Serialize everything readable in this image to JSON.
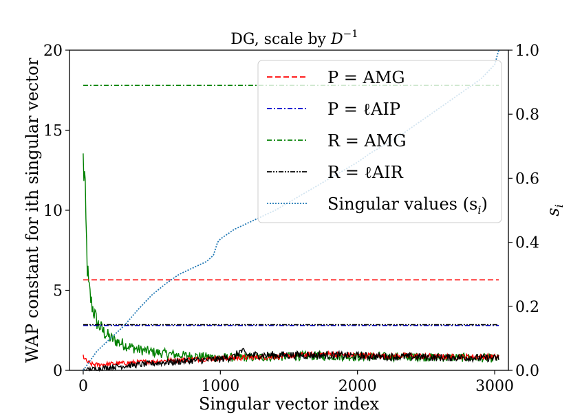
{
  "chart_data": {
    "type": "line",
    "title_text": "DG, scale by ",
    "title_math_base": "D",
    "title_math_sup": "−1",
    "xlabel": "Singular vector index",
    "ylabel_left": "WAP constant for ith singular vector",
    "ylabel_right": "s",
    "ylabel_right_sub": "i",
    "xlim": [
      -100,
      3100
    ],
    "ylim_left": [
      0,
      20
    ],
    "ylim_right": [
      0,
      1.0
    ],
    "x_ticks": [
      0,
      1000,
      2000,
      3000
    ],
    "x_tick_labels": [
      "0",
      "1000",
      "2000",
      "3000"
    ],
    "y_left_ticks": [
      0,
      5,
      10,
      15,
      20
    ],
    "y_left_tick_labels": [
      "0",
      "5",
      "10",
      "15",
      "20"
    ],
    "y_right_ticks": [
      0,
      0.2,
      0.4,
      0.6,
      0.8,
      1.0
    ],
    "y_right_tick_labels": [
      "0.0",
      "0.2",
      "0.4",
      "0.6",
      "0.8",
      "1.0"
    ],
    "legend_position": "upper-right",
    "series": [
      {
        "name": "P = AMG",
        "label": "P = AMG",
        "axis": "left",
        "color": "#ff0000",
        "style": "dashed",
        "constant": 5.65,
        "x_range": [
          0,
          3030
        ]
      },
      {
        "name": "P = ℓAIP",
        "label": "P = ℓAIP",
        "axis": "left",
        "color": "#0000cc",
        "style": "dashdot",
        "constant": 2.8,
        "x_range": [
          0,
          3030
        ]
      },
      {
        "name": "R = AMG",
        "label": "R = AMG",
        "axis": "left",
        "color": "#008000",
        "style": "dashdot",
        "constant": 17.8,
        "x_range": [
          0,
          3030
        ]
      },
      {
        "name": "R = ℓAIR",
        "label": "R = ℓAIR",
        "axis": "left",
        "color": "#000000",
        "style": "dashdotdot",
        "constant": 2.85,
        "x_range": [
          0,
          3030
        ]
      },
      {
        "name": "Singular values (s_i)",
        "label": "Singular values (s",
        "label_sub": "i",
        "label_end": ")",
        "axis": "right",
        "color": "#1f77b4",
        "style": "dotted",
        "x": [
          0,
          50,
          100,
          200,
          300,
          400,
          500,
          600,
          700,
          800,
          900,
          950,
          980,
          1000,
          1050,
          1100,
          1200,
          1300,
          1400,
          1500,
          1600,
          1700,
          1800,
          1900,
          2000,
          2100,
          2200,
          2300,
          2400,
          2500,
          2600,
          2700,
          2800,
          2900,
          3000,
          3030
        ],
        "values": [
          0.0,
          0.03,
          0.06,
          0.1,
          0.14,
          0.19,
          0.235,
          0.27,
          0.3,
          0.32,
          0.34,
          0.36,
          0.4,
          0.41,
          0.425,
          0.44,
          0.46,
          0.48,
          0.5,
          0.525,
          0.55,
          0.575,
          0.6,
          0.625,
          0.65,
          0.68,
          0.705,
          0.73,
          0.76,
          0.79,
          0.82,
          0.85,
          0.88,
          0.91,
          0.955,
          1.0
        ]
      },
      {
        "name": "R = AMG (per vector)",
        "axis": "left",
        "color": "#008000",
        "style": "solid",
        "noise": 0.35,
        "x": [
          0,
          10,
          20,
          30,
          40,
          60,
          80,
          100,
          150,
          200,
          300,
          400,
          500,
          600,
          700,
          800,
          900,
          1000,
          1200,
          1400,
          1600,
          1800,
          2000,
          2200,
          2400,
          2600,
          2800,
          3000
        ],
        "values": [
          13.0,
          12.0,
          9.0,
          6.5,
          5.2,
          4.2,
          3.6,
          3.0,
          2.4,
          2.0,
          1.6,
          1.3,
          1.15,
          1.05,
          0.95,
          0.9,
          0.85,
          0.8,
          0.8,
          0.85,
          0.9,
          0.9,
          0.85,
          0.85,
          0.85,
          0.8,
          0.8,
          0.75
        ]
      },
      {
        "name": "P = AMG (per vector)",
        "axis": "left",
        "color": "#ff0000",
        "style": "solid",
        "noise": 0.22,
        "x": [
          0,
          20,
          50,
          100,
          200,
          400,
          600,
          800,
          1000,
          1200,
          1400,
          1600,
          1700,
          1800,
          2000,
          2200,
          2400,
          2600,
          2800,
          3000
        ],
        "values": [
          0.9,
          0.6,
          0.4,
          0.35,
          0.4,
          0.5,
          0.6,
          0.7,
          0.75,
          0.8,
          0.85,
          0.95,
          1.0,
          1.0,
          0.95,
          0.9,
          0.9,
          0.85,
          0.85,
          0.85
        ]
      },
      {
        "name": "R = ℓAIR (per vector)",
        "axis": "left",
        "color": "#000000",
        "style": "solid",
        "noise": 0.3,
        "x": [
          0,
          100,
          200,
          400,
          600,
          800,
          1000,
          1100,
          1150,
          1200,
          1300,
          1400,
          1600,
          1800,
          2000,
          2200,
          2400,
          2600,
          2800,
          3000
        ],
        "values": [
          0.0,
          0.1,
          0.2,
          0.35,
          0.5,
          0.6,
          0.7,
          0.85,
          1.2,
          0.95,
          0.95,
          0.95,
          0.95,
          0.95,
          0.9,
          0.85,
          0.85,
          0.8,
          0.8,
          0.75
        ]
      }
    ]
  }
}
